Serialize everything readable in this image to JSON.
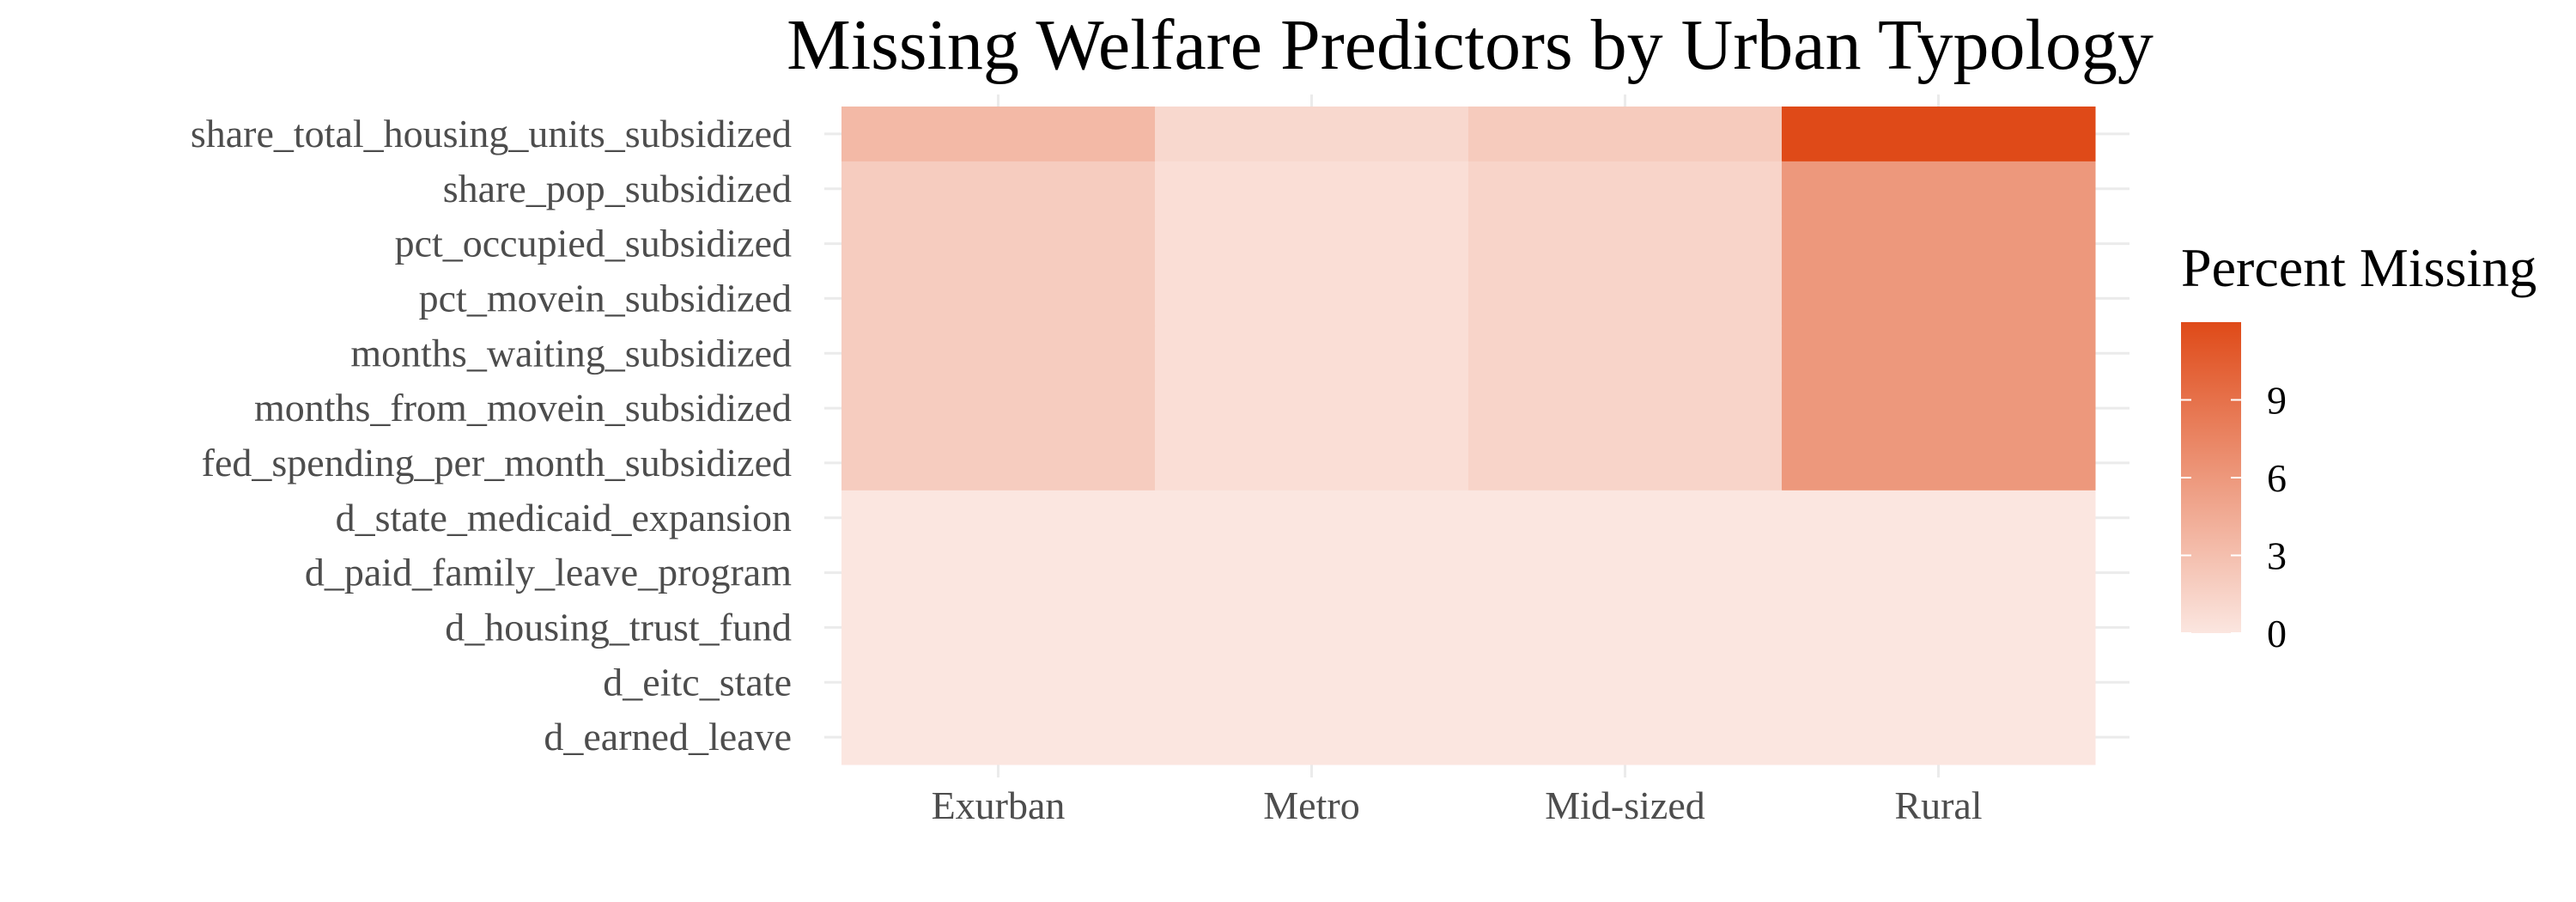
{
  "chart_data": {
    "type": "heatmap",
    "title": "Missing Welfare Predictors by Urban Typology",
    "xlabel": "",
    "ylabel": "",
    "x_categories": [
      "Exurban",
      "Metro",
      "Mid-sized",
      "Rural"
    ],
    "y_categories": [
      "share_total_housing_units_subsidized",
      "share_pop_subsidized",
      "pct_occupied_subsidized",
      "pct_movein_subsidized",
      "months_waiting_subsidized",
      "months_from_movein_subsidized",
      "fed_spending_per_month_subsidized",
      "d_state_medicaid_expansion",
      "d_paid_family_leave_program",
      "d_housing_trust_fund",
      "d_eitc_state",
      "d_earned_leave"
    ],
    "values": [
      [
        3.5,
        1.1,
        2.1,
        12.0
      ],
      [
        2.0,
        0.6,
        1.4,
        6.0
      ],
      [
        2.0,
        0.6,
        1.4,
        6.0
      ],
      [
        2.0,
        0.6,
        1.4,
        6.0
      ],
      [
        2.0,
        0.6,
        1.4,
        6.0
      ],
      [
        2.0,
        0.6,
        1.4,
        6.0
      ],
      [
        2.0,
        0.6,
        1.4,
        6.0
      ],
      [
        0.0,
        0.0,
        0.0,
        0.0
      ],
      [
        0.0,
        0.0,
        0.0,
        0.0
      ],
      [
        0.0,
        0.0,
        0.0,
        0.0
      ],
      [
        0.0,
        0.0,
        0.0,
        0.0
      ],
      [
        0.0,
        0.0,
        0.0,
        0.0
      ]
    ],
    "legend": {
      "title": "Percent Missing",
      "placement": "right",
      "ticks": [
        0,
        3,
        6,
        9
      ],
      "range": [
        0,
        12
      ],
      "color_low": "#fbe6e0",
      "color_high": "#df4a18"
    },
    "grid": true
  }
}
